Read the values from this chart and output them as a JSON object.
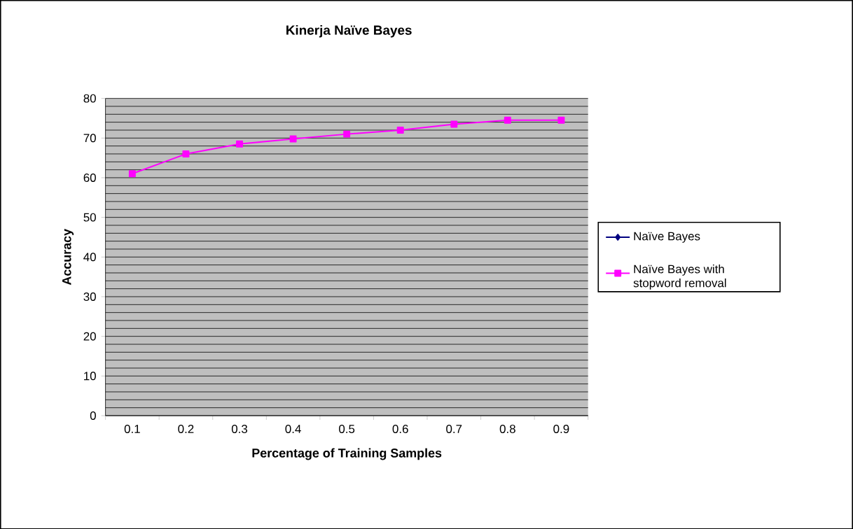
{
  "chart_data": {
    "type": "line",
    "title": "Kinerja Naïve Bayes",
    "xlabel": "Percentage of Training Samples",
    "ylabel": "Accuracy",
    "categories": [
      "0.1",
      "0.2",
      "0.3",
      "0.4",
      "0.5",
      "0.6",
      "0.7",
      "0.8",
      "0.9"
    ],
    "series": [
      {
        "name": "Naïve Bayes",
        "color": "#000080",
        "marker": "diamond",
        "values": [
          null,
          null,
          null,
          null,
          null,
          null,
          null,
          null,
          null
        ]
      },
      {
        "name": "Naïve Bayes with stopword removal",
        "color": "#ff00ff",
        "marker": "square",
        "values": [
          61,
          66,
          68.5,
          69.8,
          71,
          72,
          73.5,
          74.5,
          74.5
        ]
      }
    ],
    "ylim": [
      0,
      80
    ],
    "yticks": [
      0,
      10,
      20,
      30,
      40,
      50,
      60,
      70,
      80
    ],
    "grid": "y",
    "legend": "right"
  }
}
